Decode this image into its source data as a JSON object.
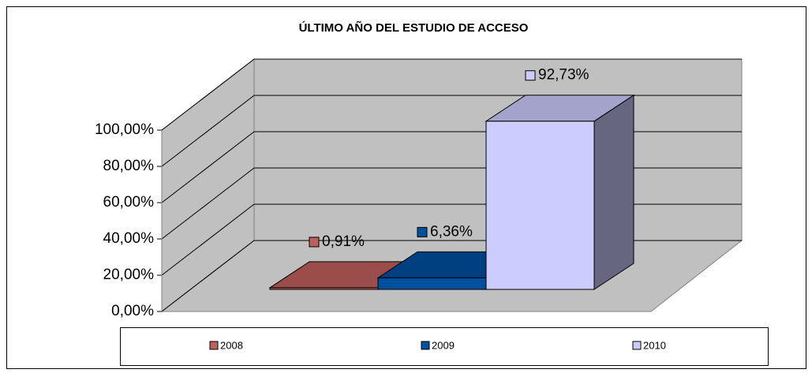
{
  "chart_data": {
    "type": "bar3d",
    "title": "ÚLTIMO AÑO DEL ESTUDIO DE ACCESO",
    "series": [
      {
        "name": "2008",
        "color": "#c0605e",
        "values": [
          0.91
        ],
        "value_labels": [
          "0,91%"
        ]
      },
      {
        "name": "2009",
        "color": "#0050a0",
        "values": [
          6.36
        ],
        "value_labels": [
          "6,36%"
        ]
      },
      {
        "name": "2010",
        "color": "#ccccff",
        "values": [
          92.73
        ],
        "value_labels": [
          "92,73%"
        ]
      }
    ],
    "ylim": [
      0,
      100
    ],
    "yticks": [
      {
        "value": 0,
        "label": "0,00%"
      },
      {
        "value": 20,
        "label": "20,00%"
      },
      {
        "value": 40,
        "label": "40,00%"
      },
      {
        "value": 60,
        "label": "60,00%"
      },
      {
        "value": 80,
        "label": "80,00%"
      },
      {
        "value": 100,
        "label": "100,00%"
      }
    ],
    "grid": true,
    "legend": "bottom"
  }
}
